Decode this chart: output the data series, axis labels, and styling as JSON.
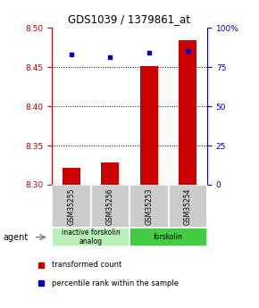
{
  "title": "GDS1039 / 1379861_at",
  "samples": [
    "GSM35255",
    "GSM35256",
    "GSM35253",
    "GSM35254"
  ],
  "bar_values": [
    8.322,
    8.328,
    8.451,
    8.484
  ],
  "bar_baseline": 8.3,
  "percentile_values": [
    83,
    81,
    84,
    85
  ],
  "percentile_scale_min": 0,
  "percentile_scale_max": 100,
  "ylim_min": 8.3,
  "ylim_max": 8.5,
  "yticks": [
    8.3,
    8.35,
    8.4,
    8.45,
    8.5
  ],
  "right_yticks": [
    0,
    25,
    50,
    75,
    100
  ],
  "bar_color": "#cc0000",
  "percentile_color": "#0000cc",
  "title_color": "#000000",
  "left_axis_color": "#cc0000",
  "right_axis_color": "#0000cc",
  "grid_lines": [
    8.35,
    8.4,
    8.45
  ],
  "groups": [
    {
      "label": "inactive forskolin\nanalog",
      "color": "#b8f0b8",
      "span": [
        0,
        2
      ]
    },
    {
      "label": "forskolin",
      "color": "#44cc44",
      "span": [
        2,
        4
      ]
    }
  ],
  "agent_label": "agent",
  "legend_bar_label": "transformed count",
  "legend_dot_label": "percentile rank within the sample",
  "background_color": "#ffffff",
  "plot_bg_color": "#ffffff",
  "sample_bg_color": "#cccccc",
  "bar_width": 0.45
}
